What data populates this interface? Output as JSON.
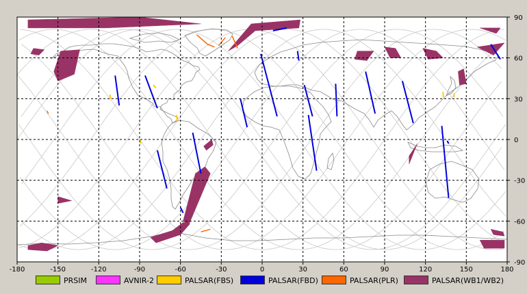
{
  "map": {
    "x_ticks": [
      -180,
      -150,
      -120,
      -90,
      -60,
      -30,
      0,
      30,
      60,
      90,
      120,
      150,
      180
    ],
    "y_ticks": [
      90,
      60,
      30,
      0,
      -30,
      -60,
      -90
    ],
    "grid": "dashed"
  },
  "legend": [
    {
      "label": "PRSIM",
      "color": "#99cc00"
    },
    {
      "label": "AVNIR-2",
      "color": "#ff33ff"
    },
    {
      "label": "PALSAR(FBS)",
      "color": "#ffcc00"
    },
    {
      "label": "PALSAR(FBD)",
      "color": "#0000dd"
    },
    {
      "label": "PALSAR(PLR)",
      "color": "#ff6600"
    },
    {
      "label": "PALSAR(WB1/WB2)",
      "color": "#993366"
    }
  ],
  "observations": {
    "wb": [
      [
        [
          -172,
          88
        ],
        [
          -90,
          90
        ],
        [
          -45,
          85
        ],
        [
          -115,
          82
        ],
        [
          -172,
          82
        ]
      ],
      [
        [
          -172,
          -78
        ],
        [
          -162,
          -76
        ],
        [
          -150,
          -78
        ],
        [
          -158,
          -82
        ],
        [
          -172,
          -81
        ]
      ],
      [
        [
          -150,
          -42
        ],
        [
          -140,
          -45
        ],
        [
          -150,
          -47
        ]
      ],
      [
        [
          -168,
          67
        ],
        [
          -160,
          66
        ],
        [
          -164,
          62
        ],
        [
          -170,
          63
        ]
      ],
      [
        [
          -148,
          65
        ],
        [
          -134,
          66
        ],
        [
          -138,
          48
        ],
        [
          -150,
          43
        ],
        [
          -153,
          50
        ]
      ],
      [
        [
          -82,
          -72
        ],
        [
          -66,
          -67
        ],
        [
          -58,
          -61
        ],
        [
          -53,
          -62
        ],
        [
          -60,
          -70
        ],
        [
          -78,
          -76
        ]
      ],
      [
        [
          -49,
          -25
        ],
        [
          -42,
          -20
        ],
        [
          -38,
          -25
        ],
        [
          -54,
          -63
        ],
        [
          -58,
          -60
        ]
      ],
      [
        [
          -43,
          -5
        ],
        [
          -37,
          0
        ],
        [
          -36,
          -4
        ],
        [
          -41,
          -8
        ]
      ],
      [
        [
          -25,
          65
        ],
        [
          -8,
          85
        ],
        [
          28,
          88
        ],
        [
          27,
          82
        ],
        [
          -5,
          80
        ],
        [
          -18,
          69
        ]
      ],
      [
        [
          70,
          65
        ],
        [
          82,
          65
        ],
        [
          77,
          58
        ],
        [
          68,
          59
        ]
      ],
      [
        [
          90,
          68
        ],
        [
          98,
          67
        ],
        [
          102,
          60
        ],
        [
          94,
          60
        ]
      ],
      [
        [
          108,
          -12
        ],
        [
          112,
          -6
        ],
        [
          114,
          -3
        ],
        [
          108,
          -18
        ]
      ],
      [
        [
          118,
          67
        ],
        [
          128,
          65
        ],
        [
          133,
          60
        ],
        [
          122,
          59
        ]
      ],
      [
        [
          144,
          50
        ],
        [
          148,
          52
        ],
        [
          150,
          41
        ],
        [
          145,
          40
        ]
      ],
      [
        [
          160,
          82
        ],
        [
          175,
          82
        ],
        [
          172,
          78
        ]
      ],
      [
        [
          158,
          68
        ],
        [
          178,
          71
        ],
        [
          170,
          62
        ]
      ],
      [
        [
          160,
          -74
        ],
        [
          178,
          -74
        ],
        [
          178,
          -80
        ],
        [
          163,
          -80
        ]
      ],
      [
        [
          168,
          -66
        ],
        [
          177,
          -68
        ],
        [
          178,
          -71
        ],
        [
          170,
          -70
        ]
      ]
    ],
    "fbd": [
      [
        [
          8,
          80
        ],
        [
          18,
          82
        ]
      ],
      [
        [
          -108,
          47
        ],
        [
          -105,
          25
        ]
      ],
      [
        [
          -86,
          47
        ],
        [
          -77,
          23
        ]
      ],
      [
        [
          -77,
          -8
        ],
        [
          -70,
          -36
        ]
      ],
      [
        [
          -51,
          5
        ],
        [
          -45,
          -25
        ]
      ],
      [
        [
          -60,
          -50
        ],
        [
          -58,
          -54
        ]
      ],
      [
        [
          -1,
          63
        ],
        [
          11,
          17
        ]
      ],
      [
        [
          -16,
          30
        ],
        [
          -11,
          9
        ]
      ],
      [
        [
          26,
          65
        ],
        [
          27,
          58
        ]
      ],
      [
        [
          31,
          40
        ],
        [
          37,
          17
        ]
      ],
      [
        [
          34,
          18
        ],
        [
          40,
          -23
        ]
      ],
      [
        [
          54,
          41
        ],
        [
          55,
          17
        ]
      ],
      [
        [
          76,
          50
        ],
        [
          83,
          19
        ]
      ],
      [
        [
          103,
          43
        ],
        [
          111,
          12
        ]
      ],
      [
        [
          132,
          10
        ],
        [
          137,
          -43
        ]
      ],
      [
        [
          136,
          -1
        ],
        [
          137,
          -3
        ]
      ],
      [
        [
          168,
          70
        ],
        [
          175,
          59
        ]
      ]
    ],
    "fbs": [
      [
        [
          -80,
          40
        ],
        [
          -78,
          38
        ]
      ],
      [
        [
          -63,
          18
        ],
        [
          -62,
          13
        ]
      ],
      [
        [
          -90,
          0
        ],
        [
          -89,
          -3
        ]
      ],
      [
        [
          -112,
          33
        ],
        [
          -111,
          30
        ]
      ],
      [
        [
          133,
          35
        ],
        [
          133,
          31
        ]
      ],
      [
        [
          141,
          34
        ],
        [
          141,
          31
        ]
      ]
    ],
    "plr": [
      [
        [
          -48,
          77
        ],
        [
          -40,
          70
        ],
        [
          -35,
          68
        ]
      ],
      [
        [
          -27,
          75
        ],
        [
          -32,
          69
        ]
      ],
      [
        [
          -22,
          76
        ],
        [
          -18,
          67
        ]
      ],
      [
        [
          -158,
          21
        ],
        [
          -157,
          19
        ]
      ],
      [
        [
          -45,
          -68
        ],
        [
          -38,
          -66
        ]
      ]
    ]
  }
}
